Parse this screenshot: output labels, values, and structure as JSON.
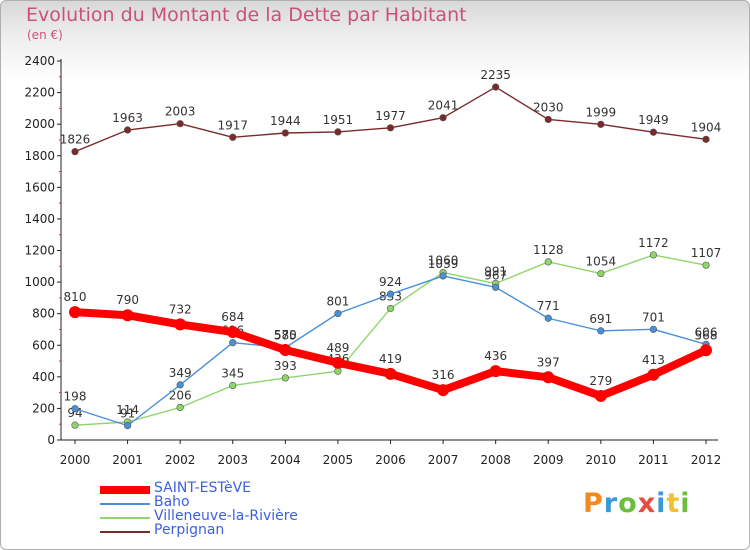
{
  "title": "Evolution du Montant de la Dette par Habitant",
  "unit": "(en €)",
  "logo": {
    "text": "Proxiti",
    "colors": [
      "#f08a1c",
      "#3a9ad9",
      "#6cbf3c",
      "#e84c3d",
      "#3a9ad9",
      "#f2c12e",
      "#6cbf3c"
    ]
  },
  "chart_data": {
    "type": "line",
    "x": [
      "2000",
      "2001",
      "2002",
      "2003",
      "2004",
      "2005",
      "2006",
      "2007",
      "2008",
      "2009",
      "2010",
      "2011",
      "2012"
    ],
    "ylim": [
      0,
      2400
    ],
    "yticks": [
      "0",
      "200",
      "400",
      "600",
      "800",
      "1000",
      "1200",
      "1400",
      "1600",
      "1800",
      "2000",
      "2200",
      "2400"
    ],
    "grid": false,
    "legend_position": "bottom-left",
    "series": [
      {
        "name": "Perpignan",
        "color": "#7a2a2a",
        "values": [
          1826,
          1963,
          2003,
          1917,
          1944,
          1951,
          1977,
          2041,
          2235,
          2030,
          1999,
          1949,
          1904
        ],
        "labels": [
          "1826",
          "1963",
          "2003",
          "1917",
          "1944",
          "1951",
          "1977",
          "2041",
          "2235",
          "2030",
          "1999",
          "1949",
          "1904"
        ]
      },
      {
        "name": "Villeneuve-la-Rivière",
        "color": "#8fd66a",
        "values": [
          94,
          114,
          206,
          345,
          393,
          436,
          833,
          1060,
          991,
          1128,
          1054,
          1172,
          1107
        ],
        "labels": [
          "94",
          "114",
          "206",
          "345",
          "393",
          "436",
          "833",
          "1060",
          "991",
          "1128",
          "1054",
          "1172",
          "1107"
        ]
      },
      {
        "name": "Baho",
        "color": "#4a90d9",
        "values": [
          198,
          91,
          349,
          616,
          585,
          801,
          924,
          1039,
          967,
          771,
          691,
          701,
          606
        ],
        "labels": [
          "198",
          "91",
          "349",
          "616",
          "585",
          "801",
          "924",
          "1039",
          "967",
          "771",
          "691",
          "701",
          "606"
        ]
      },
      {
        "name": "SAINT-ESTèVE",
        "color": "#ff0000",
        "values": [
          810,
          790,
          732,
          684,
          570,
          489,
          419,
          316,
          436,
          397,
          279,
          413,
          568
        ],
        "labels": [
          "810",
          "790",
          "732",
          "684",
          "570",
          "489",
          "419",
          "316",
          "436",
          "397",
          "279",
          "413",
          "568"
        ]
      }
    ]
  },
  "legend": [
    {
      "label": "SAINT-ESTèVE",
      "color": "#ff0000",
      "thick": true
    },
    {
      "label": "Baho",
      "color": "#4a90d9",
      "thick": false
    },
    {
      "label": "Villeneuve-la-Rivière",
      "color": "#8fd66a",
      "thick": false
    },
    {
      "label": "Perpignan",
      "color": "#7a2a2a",
      "thick": false
    }
  ]
}
